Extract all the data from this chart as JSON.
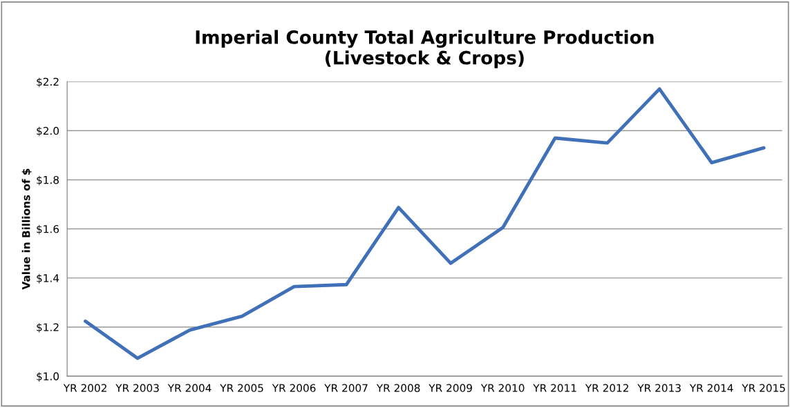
{
  "chart_data": {
    "type": "line",
    "title": "Imperial County Total Agriculture Production\n(Livestock & Crops)",
    "ylabel": "Value in Billions of $",
    "categories": [
      "YR 2002",
      "YR 2003",
      "YR 2004",
      "YR 2005",
      "YR 2006",
      "YR 2007",
      "YR 2008",
      "YR 2009",
      "YR 2010",
      "YR 2011",
      "YR 2012",
      "YR 2013",
      "YR 2014",
      "YR 2015"
    ],
    "series": [
      {
        "color": "#4070b8",
        "values": [
          1.224,
          1.073,
          1.188,
          1.244,
          1.365,
          1.373,
          1.687,
          1.46,
          1.606,
          1.97,
          1.95,
          2.17,
          1.87,
          1.93
        ]
      }
    ],
    "ylim": [
      1.0,
      2.2
    ],
    "yticks": [
      {
        "value": 1.0,
        "label": "$1.0"
      },
      {
        "value": 1.2,
        "label": "$1.2"
      },
      {
        "value": 1.4,
        "label": "$1.4"
      },
      {
        "value": 1.6,
        "label": "$1.6"
      },
      {
        "value": 1.8,
        "label": "$1.8"
      },
      {
        "value": 2.0,
        "label": "$2.0"
      },
      {
        "value": 2.2,
        "label": "$2.2"
      }
    ],
    "grid": "y",
    "marker": "none",
    "line_style": "solid"
  }
}
